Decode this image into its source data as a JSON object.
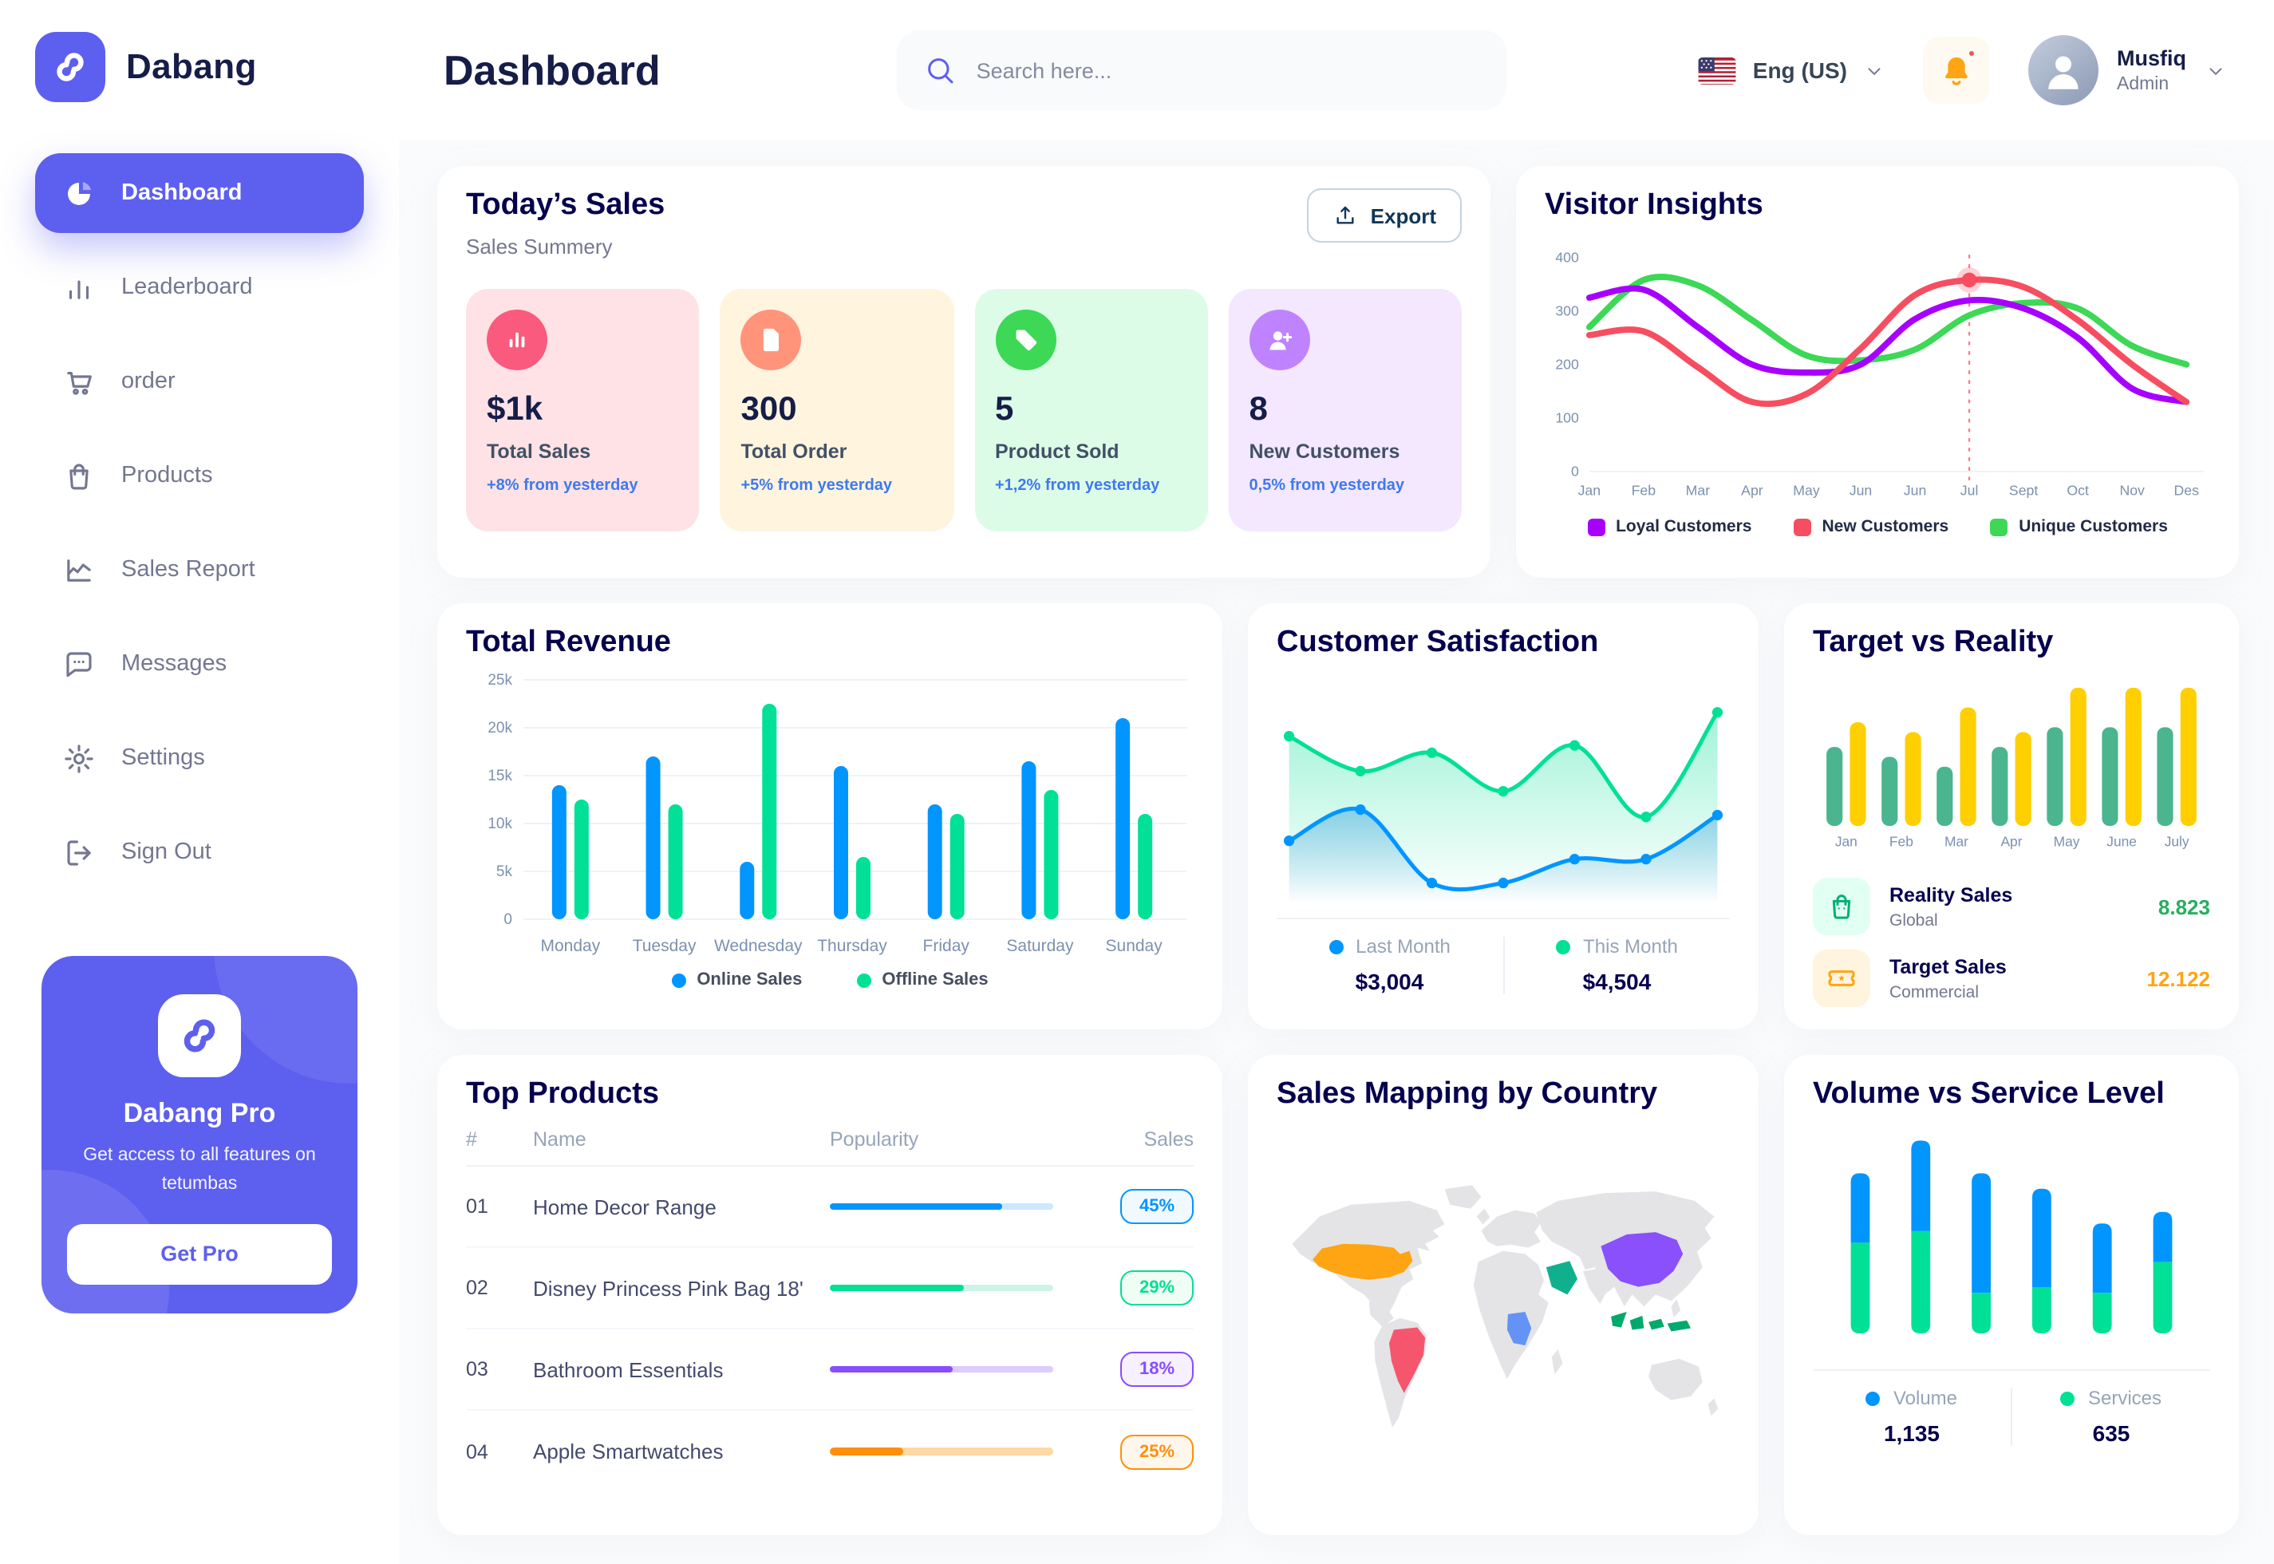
{
  "brand": {
    "name": "Dabang",
    "logo_icon": "logo-icon"
  },
  "header": {
    "page_title": "Dashboard",
    "search": {
      "placeholder": "Search here...",
      "icon": "search-icon"
    },
    "language": {
      "label": "Eng (US)",
      "flag_icon": "us-flag-icon",
      "chevron_icon": "chevron-down-icon"
    },
    "notifications": {
      "icon": "bell-icon",
      "has_unread": true
    },
    "user": {
      "name": "Musfiq",
      "role": "Admin",
      "avatar_icon": "avatar-icon",
      "chevron_icon": "chevron-down-icon"
    }
  },
  "sidebar": {
    "items": [
      {
        "label": "Dashboard",
        "icon": "pie-chart-icon",
        "active": true
      },
      {
        "label": "Leaderboard",
        "icon": "bar-chart-icon",
        "active": false
      },
      {
        "label": "order",
        "icon": "cart-icon",
        "active": false
      },
      {
        "label": "Products",
        "icon": "bag-icon",
        "active": false
      },
      {
        "label": "Sales Report",
        "icon": "trend-icon",
        "active": false
      },
      {
        "label": "Messages",
        "icon": "chat-icon",
        "active": false
      },
      {
        "label": "Settings",
        "icon": "gear-icon",
        "active": false
      },
      {
        "label": "Sign Out",
        "icon": "signout-icon",
        "active": false
      }
    ],
    "pro_card": {
      "title": "Dabang Pro",
      "description": "Get access to all features on tetumbas",
      "button_label": "Get Pro",
      "icon": "logo-icon"
    }
  },
  "today_sales": {
    "title": "Today’s Sales",
    "subtitle": "Sales Summery",
    "export_label": "Export",
    "export_icon": "export-icon",
    "delta_color": "#4079ED",
    "cards": [
      {
        "value": "$1k",
        "label": "Total Sales",
        "delta": "+8% from yesterday",
        "bg": "#FFE2E5",
        "icon_bg": "#FA5A7D",
        "icon": "stat-chart-icon"
      },
      {
        "value": "300",
        "label": "Total Order",
        "delta": "+5% from yesterday",
        "bg": "#FFF4DE",
        "icon_bg": "#FF947A",
        "icon": "stat-file-icon"
      },
      {
        "value": "5",
        "label": "Product Sold",
        "delta": "+1,2% from yesterday",
        "bg": "#DCFCE7",
        "icon_bg": "#3CD856",
        "icon": "stat-tag-icon"
      },
      {
        "value": "8",
        "label": "New Customers",
        "delta": "0,5% from yesterday",
        "bg": "#F3E8FF",
        "icon_bg": "#BF83FF",
        "icon": "stat-user-plus-icon"
      }
    ]
  },
  "top_products": {
    "title": "Top Products",
    "columns": [
      "#",
      "Name",
      "Popularity",
      "Sales"
    ],
    "rows": [
      {
        "id": "01",
        "name": "Home Decor Range",
        "popularity_percent": 77,
        "sales": "45%",
        "color": "#0095FF",
        "track": "#CDE7FF",
        "badge_bg": "#F0F9FF"
      },
      {
        "id": "02",
        "name": "Disney Princess Pink Bag 18'",
        "popularity_percent": 60,
        "sales": "29%",
        "color": "#00E096",
        "track": "#CDF4E4",
        "badge_bg": "#F0FDF4"
      },
      {
        "id": "03",
        "name": "Bathroom Essentials",
        "popularity_percent": 55,
        "sales": "18%",
        "color": "#884DFF",
        "track": "#DCCCFF",
        "badge_bg": "#F6F0FF"
      },
      {
        "id": "04",
        "name": "Apple Smartwatches",
        "popularity_percent": 33,
        "sales": "25%",
        "color": "#FF8F0D",
        "track": "#FFD9A3",
        "badge_bg": "#FFF7EC"
      }
    ]
  },
  "chart_data": {
    "visitor_insights": {
      "title": "Visitor Insights",
      "type": "line",
      "x": [
        "Jan",
        "Feb",
        "Mar",
        "Apr",
        "May",
        "Jun",
        "Jun",
        "Jul",
        "Sept",
        "Oct",
        "Nov",
        "Des"
      ],
      "ylim": [
        0,
        400
      ],
      "yticks": [
        0,
        100,
        200,
        300,
        400
      ],
      "grid": false,
      "legend_position": "bottom",
      "series": [
        {
          "name": "Loyal Customers",
          "color": "#A700FF",
          "values": [
            325,
            340,
            270,
            200,
            185,
            200,
            285,
            320,
            305,
            250,
            155,
            130
          ]
        },
        {
          "name": "New Customers",
          "color": "#F64E60",
          "values": [
            255,
            262,
            195,
            130,
            145,
            230,
            330,
            358,
            345,
            283,
            200,
            130
          ]
        },
        {
          "name": "Unique Customers",
          "color": "#3CD856",
          "values": [
            270,
            358,
            348,
            283,
            217,
            208,
            228,
            292,
            315,
            305,
            235,
            200
          ]
        }
      ],
      "marker": {
        "series": "New Customers",
        "index": 7,
        "x_label": "Jul",
        "value": 358
      }
    },
    "total_revenue": {
      "title": "Total Revenue",
      "type": "bar",
      "categories": [
        "Monday",
        "Tuesday",
        "Wednesday",
        "Thursday",
        "Friday",
        "Saturday",
        "Sunday"
      ],
      "ylim": [
        0,
        25000
      ],
      "ytick_labels": [
        "0",
        "5k",
        "10k",
        "15k",
        "20k",
        "25k"
      ],
      "grid": true,
      "legend_position": "bottom",
      "series": [
        {
          "name": "Online Sales",
          "color": "#0095FF",
          "values": [
            14000,
            17000,
            6000,
            16000,
            12000,
            16500,
            21000
          ]
        },
        {
          "name": "Offline Sales",
          "color": "#00E096",
          "values": [
            12500,
            12000,
            22500,
            6500,
            11000,
            13500,
            11000
          ]
        }
      ]
    },
    "customer_satisfaction": {
      "title": "Customer Satisfaction",
      "type": "area",
      "ylim": [
        0,
        110
      ],
      "legend_position": "bottom",
      "series": [
        {
          "name": "Last Month",
          "color": "#0095FF",
          "total": "$3,004",
          "values": [
            29,
            46,
            6,
            6,
            19,
            19,
            43
          ]
        },
        {
          "name": "This Month",
          "color": "#00E096",
          "total": "$4,504",
          "values": [
            86,
            67,
            77,
            56,
            81,
            42,
            99
          ]
        }
      ]
    },
    "target_vs_reality": {
      "title": "Target vs Reality",
      "type": "bar",
      "categories": [
        "Jan",
        "Feb",
        "Mar",
        "Apr",
        "May",
        "June",
        "July"
      ],
      "ylim": [
        0,
        14.5
      ],
      "grid": false,
      "series": [
        {
          "name": "Reality Sales",
          "color": "#4AB58E",
          "values": [
            8,
            7,
            6,
            8,
            10,
            10,
            10
          ]
        },
        {
          "name": "Target Sales",
          "color": "#FFCF00",
          "values": [
            10.5,
            9.5,
            12,
            9.5,
            14,
            14,
            14
          ]
        }
      ],
      "legend": [
        {
          "name": "Reality Sales",
          "subtitle": "Global",
          "value": "8.823",
          "value_color": "#27AE60",
          "icon": "bag-tile-icon",
          "tile_bg": "#E2FFF3",
          "icon_color": "#00B074"
        },
        {
          "name": "Target Sales",
          "subtitle": "Commercial",
          "value": "12.122",
          "value_color": "#FFA412",
          "icon": "ticket-tile-icon",
          "tile_bg": "#FFF4DE",
          "icon_color": "#FFA412"
        }
      ]
    },
    "sales_mapping": {
      "title": "Sales Mapping by Country",
      "type": "map",
      "land_color": "#E4E4E7",
      "countries": [
        {
          "name": "United States",
          "color": "#FFA412"
        },
        {
          "name": "Brazil",
          "color": "#F5566E"
        },
        {
          "name": "DR Congo",
          "color": "#6593F5"
        },
        {
          "name": "Saudi Arabia",
          "color": "#10B08F"
        },
        {
          "name": "China",
          "color": "#8950FC"
        },
        {
          "name": "Indonesia",
          "color": "#00A96C"
        }
      ]
    },
    "volume_service": {
      "title": "Volume vs Service Level",
      "type": "stacked-bar",
      "ylim": [
        0,
        100
      ],
      "legend_position": "bottom",
      "series": [
        {
          "name": "Volume",
          "color": "#0095FF",
          "total": "1,135",
          "values": [
            36,
            47,
            62,
            51,
            36,
            26
          ]
        },
        {
          "name": "Services",
          "color": "#00E096",
          "total": "635",
          "values": [
            47,
            53,
            21,
            24,
            21,
            37
          ]
        }
      ]
    }
  }
}
